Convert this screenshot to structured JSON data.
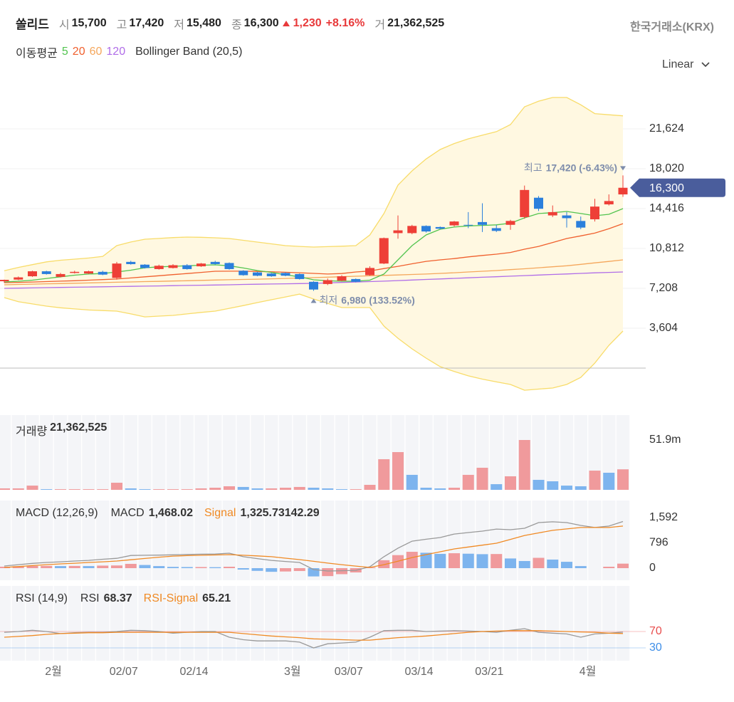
{
  "header": {
    "name": "쏠리드",
    "open_label": "시",
    "open": "15,700",
    "high_label": "고",
    "high": "17,420",
    "low_label": "저",
    "low": "15,480",
    "close_label": "종",
    "close": "16,300",
    "change": "1,230",
    "change_pct": "+8.16%",
    "volume_label": "거",
    "volume": "21,362,525",
    "exchange": "한국거래소(KRX)"
  },
  "scale_menu": "Linear",
  "chart_data": [
    {
      "type": "candlestick",
      "legend_title": "이동평균",
      "up_color": "#ee3f37",
      "down_color": "#2b7fdc",
      "last_tag_color": "#4a5d9c",
      "grid": true,
      "categories": [
        null,
        null,
        null,
        null,
        "2월",
        null,
        null,
        null,
        null,
        "02/07",
        null,
        null,
        null,
        null,
        "02/14",
        null,
        null,
        null,
        null,
        null,
        null,
        "3월",
        null,
        null,
        null,
        "03/07",
        null,
        null,
        null,
        null,
        "03/14",
        null,
        null,
        null,
        null,
        "03/21",
        null,
        null,
        null,
        null,
        null,
        null,
        "4월",
        null,
        null
      ],
      "open": [
        7850,
        8000,
        8300,
        8750,
        8250,
        8600,
        8550,
        8700,
        8150,
        9600,
        9350,
        8950,
        9050,
        9300,
        9200,
        9600,
        9500,
        8800,
        8650,
        8550,
        8600,
        8500,
        7800,
        7600,
        7900,
        8050,
        8400,
        9450,
        12200,
        12200,
        12850,
        12750,
        12900,
        12950,
        13200,
        12650,
        12950,
        13650,
        15400,
        13800,
        13800,
        13300,
        13450,
        14800,
        15700
      ],
      "high": [
        8000,
        8280,
        8800,
        8800,
        8600,
        8800,
        8800,
        8800,
        9600,
        9700,
        9400,
        9350,
        9400,
        9400,
        9500,
        9700,
        9550,
        8850,
        8700,
        8600,
        8650,
        8550,
        7850,
        8100,
        8400,
        8100,
        9200,
        11800,
        13800,
        12950,
        12900,
        12800,
        13300,
        14100,
        14900,
        12950,
        13400,
        16500,
        15550,
        14700,
        14100,
        13700,
        15300,
        15700,
        17420
      ],
      "low": [
        7700,
        7950,
        8250,
        8450,
        8200,
        8550,
        8500,
        8400,
        8000,
        9350,
        9000,
        8900,
        9000,
        8900,
        9150,
        9350,
        8900,
        8350,
        8300,
        8250,
        8300,
        8000,
        6980,
        7500,
        7850,
        7750,
        8350,
        9400,
        11700,
        12100,
        12250,
        12550,
        12800,
        12650,
        12300,
        12300,
        12500,
        13500,
        14200,
        13650,
        12700,
        12550,
        13250,
        14700,
        15480
      ],
      "close": [
        7980,
        8200,
        8750,
        8500,
        8500,
        8700,
        8750,
        8450,
        9450,
        9400,
        9050,
        9250,
        9300,
        8950,
        9450,
        9400,
        8950,
        8400,
        8350,
        8300,
        8350,
        8050,
        7100,
        7950,
        8300,
        7800,
        9050,
        11750,
        12450,
        12850,
        12350,
        12600,
        13250,
        12900,
        12950,
        12400,
        13300,
        16100,
        14400,
        14100,
        13550,
        12700,
        14600,
        15100,
        16300
      ],
      "series": [
        {
          "name": "5",
          "color": "#52c44f",
          "values": [
            7790,
            7850,
            7950,
            8100,
            8250,
            8400,
            8500,
            8550,
            8690,
            8850,
            9070,
            9150,
            9200,
            9250,
            9300,
            9330,
            9250,
            9050,
            8820,
            8650,
            8430,
            8250,
            7980,
            7900,
            7850,
            7850,
            7950,
            8500,
            9780,
            11070,
            12035,
            12550,
            12750,
            12850,
            12900,
            12950,
            13100,
            13580,
            13970,
            14050,
            14160,
            13970,
            13770,
            13900,
            14416
          ]
        },
        {
          "name": "20",
          "color": "#f0602e",
          "values": [
            7720,
            7750,
            7780,
            7820,
            7860,
            7900,
            7950,
            8000,
            8050,
            8150,
            8250,
            8350,
            8450,
            8550,
            8650,
            8750,
            8760,
            8760,
            8740,
            8700,
            8660,
            8620,
            8560,
            8500,
            8550,
            8690,
            8780,
            9000,
            9200,
            9430,
            9650,
            9780,
            9900,
            10050,
            10180,
            10300,
            10450,
            10750,
            11000,
            11350,
            11710,
            11950,
            12200,
            12600,
            13060
          ]
        },
        {
          "name": "60",
          "color": "#f5a75c",
          "values": [
            7530,
            7560,
            7590,
            7620,
            7640,
            7670,
            7700,
            7730,
            7760,
            7790,
            7820,
            7840,
            7870,
            7900,
            7930,
            7960,
            7990,
            8010,
            8040,
            8070,
            8100,
            8140,
            8180,
            8220,
            8260,
            8300,
            8340,
            8380,
            8420,
            8460,
            8500,
            8560,
            8620,
            8690,
            8750,
            8820,
            8900,
            8980,
            9070,
            9160,
            9250,
            9380,
            9510,
            9640,
            9780
          ]
        },
        {
          "name": "120",
          "color": "#b06de8",
          "values": [
            7210,
            7230,
            7250,
            7270,
            7290,
            7310,
            7330,
            7350,
            7370,
            7390,
            7410,
            7430,
            7450,
            7470,
            7490,
            7510,
            7530,
            7560,
            7580,
            7600,
            7620,
            7640,
            7660,
            7700,
            7740,
            7780,
            7820,
            7860,
            7910,
            7960,
            8010,
            8060,
            8110,
            8160,
            8210,
            8260,
            8310,
            8360,
            8410,
            8460,
            8510,
            8560,
            8610,
            8650,
            8690
          ]
        }
      ],
      "bollinger": {
        "name": "Bollinger Band (20,5)",
        "color": "#f8dc6a",
        "fill": "#fff8e1",
        "upper": [
          8800,
          9100,
          9350,
          9600,
          9750,
          9850,
          9950,
          10100,
          11070,
          11400,
          11650,
          11720,
          11800,
          11840,
          11820,
          11780,
          11710,
          11550,
          11390,
          11230,
          11070,
          11000,
          10940,
          10980,
          11020,
          11070,
          12035,
          13970,
          16540,
          17830,
          18900,
          19760,
          20300,
          20720,
          21050,
          21370,
          22010,
          23620,
          24130,
          24460,
          24460,
          23800,
          23000,
          22900,
          22800
        ],
        "lower": [
          6370,
          6000,
          5800,
          5600,
          5450,
          5350,
          5250,
          5200,
          5150,
          4900,
          4630,
          4700,
          4760,
          4900,
          5030,
          5150,
          5400,
          5650,
          5920,
          6180,
          6430,
          6690,
          6240,
          5850,
          5470,
          5470,
          5470,
          3800,
          2700,
          1740,
          900,
          130,
          -300,
          -700,
          -1000,
          -1250,
          -1480,
          -2000,
          -1900,
          -1800,
          -1480,
          -840,
          450,
          2060,
          3350
        ]
      },
      "annotations": [
        {
          "label": "최고",
          "text": "17,420 (-6.43%)"
        },
        {
          "label": "최저",
          "text": "6,980 (133.52%)"
        }
      ],
      "ylim": [
        -2767,
        26837
      ],
      "yticks": [
        {
          "value": 3604,
          "label": "3,604"
        },
        {
          "value": 7208,
          "label": "7,208"
        },
        {
          "value": 10812,
          "label": "10,812"
        },
        {
          "value": 14416,
          "label": "14,416"
        },
        {
          "value": 18020,
          "label": "18,020"
        },
        {
          "value": 21624,
          "label": "21,624"
        }
      ]
    },
    {
      "type": "bar",
      "title": "거래량",
      "up_color": "#f09a9c",
      "down_color": "#7db4ee",
      "values": [
        1500000,
        1500000,
        4400000,
        700000,
        700000,
        700000,
        700000,
        700000,
        7400000,
        1500000,
        700000,
        700000,
        700000,
        700000,
        1500000,
        2200000,
        3700000,
        3000000,
        1500000,
        1500000,
        2200000,
        3000000,
        2200000,
        1500000,
        700000,
        700000,
        5200000,
        31900000,
        39300000,
        15600000,
        2200000,
        1500000,
        2200000,
        15600000,
        23000000,
        5900000,
        14100000,
        51900000,
        10400000,
        8900000,
        4400000,
        3700000,
        20000000,
        17800000,
        21362525
      ],
      "ylim": [
        0,
        76367000
      ],
      "yticks": [
        {
          "value": 51900000,
          "label": "51.9m"
        }
      ]
    },
    {
      "type": "macd",
      "title": "MACD (12,26,9)",
      "up_color": "#f09a9c",
      "down_color": "#7db4ee",
      "series": [
        {
          "name": "MACD",
          "color": "#999999",
          "value_label": "1,468.02",
          "values": [
            68,
            110,
            150,
            180,
            200,
            225,
            245,
            280,
            310,
            400,
            405,
            410,
            420,
            430,
            440,
            445,
            470,
            360,
            300,
            245,
            210,
            180,
            -45,
            -90,
            -80,
            -70,
            45,
            360,
            630,
            850,
            910,
            965,
            1075,
            1120,
            1165,
            1230,
            1210,
            1255,
            1435,
            1460,
            1435,
            1345,
            1280,
            1325,
            1468.02
          ]
        },
        {
          "name": "Signal",
          "color": "#f08a24",
          "value_label": "1,325.73",
          "values": [
            22,
            50,
            80,
            110,
            135,
            155,
            180,
            200,
            225,
            265,
            305,
            345,
            380,
            395,
            405,
            415,
            425,
            405,
            385,
            360,
            315,
            270,
            215,
            160,
            110,
            65,
            22,
            110,
            220,
            335,
            425,
            515,
            605,
            665,
            725,
            785,
            905,
            1030,
            1110,
            1190,
            1235,
            1280,
            1280,
            1280,
            1325.73
          ]
        }
      ],
      "histogram": {
        "value_label": "142.29",
        "values": [
          46,
          60,
          70,
          70,
          65,
          70,
          65,
          80,
          85,
          135,
          100,
          65,
          40,
          35,
          35,
          30,
          45,
          -45,
          -85,
          -115,
          -105,
          -90,
          -260,
          -250,
          -190,
          -135,
          23,
          250,
          410,
          515,
          485,
          450,
          470,
          455,
          440,
          445,
          305,
          225,
          325,
          270,
          200,
          65,
          0,
          45,
          142.29
        ]
      },
      "ylim": [
        -381,
        2085
      ],
      "yticks": [
        0,
        796,
        {
          "value": 1592,
          "label": "1,592"
        }
      ]
    },
    {
      "type": "line",
      "title": "RSI (14,9)",
      "series": [
        {
          "name": "RSI",
          "color": "#999999",
          "value_label": "68.37",
          "values": [
            68,
            70,
            73,
            70,
            65,
            67,
            68,
            68,
            70,
            73,
            72,
            70,
            66,
            68,
            70,
            70,
            56,
            50,
            47,
            47,
            47,
            44,
            30,
            40,
            42,
            44,
            56,
            72,
            73,
            73,
            70,
            71,
            72,
            71,
            70,
            68,
            73,
            77,
            68,
            66,
            64,
            56,
            64,
            66,
            68.37
          ]
        },
        {
          "name": "RSI-Signal",
          "color": "#f08a24",
          "value_label": "65.21",
          "values": [
            56,
            58,
            60,
            63,
            65,
            66,
            67,
            67,
            68,
            68,
            68,
            68,
            68,
            68,
            68,
            68,
            68,
            65,
            62,
            59,
            57,
            55,
            52,
            51,
            50,
            49,
            49,
            52,
            55,
            57,
            59,
            62,
            65,
            68,
            70,
            71,
            72,
            72,
            72,
            71,
            70,
            69,
            68,
            66,
            65.21
          ]
        }
      ],
      "ylim": [
        -1.3,
        177.8
      ],
      "yticks": [
        30,
        70
      ],
      "ytick_colors": [
        "#3d8ee8",
        "#e84d4d"
      ]
    }
  ]
}
